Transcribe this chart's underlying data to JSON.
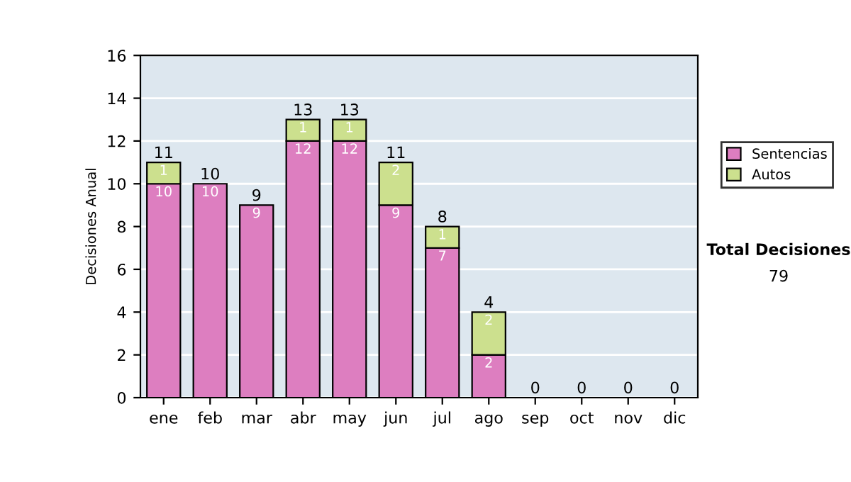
{
  "chart_data": {
    "type": "bar",
    "stacked": true,
    "ylabel": "Decisiones Anual",
    "categories": [
      "ene",
      "feb",
      "mar",
      "abr",
      "may",
      "jun",
      "jul",
      "ago",
      "sep",
      "oct",
      "nov",
      "dic"
    ],
    "series": [
      {
        "name": "Sentencias",
        "color": "#dd7ec0",
        "values": [
          10,
          10,
          9,
          12,
          12,
          9,
          7,
          2,
          0,
          0,
          0,
          0
        ],
        "value_labels": [
          "10",
          "10",
          "9",
          "12",
          "12",
          "9",
          "7",
          "2",
          null,
          null,
          null,
          null
        ]
      },
      {
        "name": "Autos",
        "color": "#cce08e",
        "values": [
          1,
          0,
          0,
          1,
          1,
          2,
          1,
          2,
          0,
          0,
          0,
          0
        ],
        "value_labels": [
          "1",
          null,
          null,
          "1",
          "1",
          "2",
          "1",
          "2",
          null,
          null,
          null,
          null
        ]
      }
    ],
    "totals": [
      "11",
      "10",
      "9",
      "13",
      "13",
      "11",
      "8",
      "4",
      "0",
      "0",
      "0",
      "0"
    ],
    "ylim": [
      0,
      16
    ],
    "yticks": [
      0,
      2,
      4,
      6,
      8,
      10,
      12,
      14,
      16
    ],
    "grid": "y",
    "legend": "right",
    "annotations": [
      "Total Decisiones",
      "79"
    ]
  }
}
